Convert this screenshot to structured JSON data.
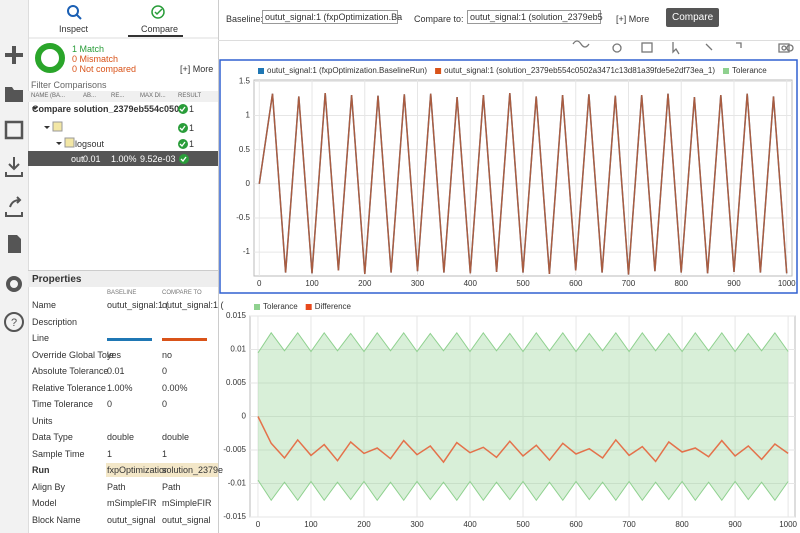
{
  "toolbar": {
    "baseline_label": "Baseline:",
    "baseline_select": "outut_signal:1 (fxpOptimization.Ba",
    "compare_label": "Compare to:",
    "compare_select": "outut_signal:1 (solution_2379eb5",
    "more": "[+] More",
    "compare_button": "Compare"
  },
  "left_panel": {
    "tabs": [
      "Inspect",
      "Compare"
    ],
    "summary": {
      "match": "1 Match",
      "mismatch": "0 Mismatch",
      "not_compared": "0 Not compared",
      "more": "[+] More"
    },
    "filter": "Filter Comparisons",
    "table": {
      "columns": [
        "NAME (BA...",
        "AB...",
        "RE...",
        "MAX DI...",
        "RESULT"
      ],
      "rows": [
        {
          "name": "Compare solution_2379eb554c0502",
          "result": "1"
        },
        {
          "result": "1"
        },
        {
          "name": "logsout",
          "result": "1"
        },
        {
          "name": "out",
          "abs": "0.01",
          "rel": "1.00%",
          "max": "9.52e-03"
        }
      ]
    },
    "properties": {
      "title": "Properties",
      "columns": [
        "BASELINE",
        "COMPARE TO"
      ],
      "baseline_color": "#1f77b4",
      "compare_color": "#d95319",
      "rows": [
        {
          "label": "Name",
          "baseline": "outut_signal:1 (",
          "compare": "outut_signal:1 ("
        },
        {
          "label": "Description"
        },
        {
          "label": "Line"
        },
        {
          "label": "Override Global Tole",
          "baseline": "yes",
          "compare": "no"
        },
        {
          "label": "Absolute Tolerance",
          "baseline": "0.01",
          "compare": "0"
        },
        {
          "label": "Relative Tolerance",
          "baseline": "1.00%",
          "compare": "0.00%"
        },
        {
          "label": "Time Tolerance",
          "baseline": "0",
          "compare": "0"
        },
        {
          "label": "Units"
        },
        {
          "label": "Data Type",
          "baseline": "double",
          "compare": "double"
        },
        {
          "label": "Sample Time",
          "baseline": "1",
          "compare": "1"
        },
        {
          "label": "Run",
          "baseline": "fxpOptimizatior",
          "compare": "solution_2379e"
        },
        {
          "label": "Align By",
          "baseline": "Path",
          "compare": "Path"
        },
        {
          "label": "Model",
          "baseline": "mSimpleFIR",
          "compare": "mSimpleFIR"
        },
        {
          "label": "Block Name",
          "baseline": "outut_signal",
          "compare": "outut_signal"
        }
      ]
    }
  },
  "chart_data": [
    {
      "type": "line",
      "x": [
        0,
        25,
        50,
        75,
        100,
        125,
        150,
        175,
        200,
        225,
        250,
        275,
        300,
        325,
        350,
        375,
        400,
        425,
        450,
        475,
        500,
        525,
        550,
        575,
        600,
        625,
        650,
        675,
        700,
        725,
        750,
        775,
        800,
        825,
        850,
        875,
        900,
        925,
        950,
        975,
        1000
      ],
      "series": [
        {
          "name": "outut_signal:1 (fxpOptimization.BaselineRun)",
          "color": "#1f77b4",
          "values": [
            0,
            1.32,
            -1.3,
            1.28,
            -1.31,
            1.33,
            -1.27,
            1.3,
            -1.32,
            1.29,
            -1.3,
            1.31,
            -1.28,
            1.32,
            -1.3,
            1.27,
            -1.31,
            1.3,
            -1.29,
            1.33,
            -1.3,
            1.28,
            -1.32,
            1.3,
            -1.27,
            1.31,
            -1.3,
            1.29,
            -1.33,
            1.3,
            -1.28,
            1.32,
            -1.3,
            1.27,
            -1.31,
            1.3,
            -1.29,
            1.32,
            -1.3,
            1.28,
            -1.31
          ]
        },
        {
          "name": "outut_signal:1 (solution_2379eb554c0502a3471c13d81a39fde5e2df73ea_1)",
          "color": "#d95319",
          "values": [
            0,
            1.32,
            -1.3,
            1.28,
            -1.31,
            1.33,
            -1.27,
            1.3,
            -1.32,
            1.29,
            -1.3,
            1.31,
            -1.28,
            1.32,
            -1.3,
            1.27,
            -1.31,
            1.3,
            -1.29,
            1.33,
            -1.3,
            1.28,
            -1.32,
            1.3,
            -1.27,
            1.31,
            -1.3,
            1.29,
            -1.33,
            1.3,
            -1.28,
            1.32,
            -1.3,
            1.27,
            -1.31,
            1.3,
            -1.29,
            1.32,
            -1.3,
            1.28,
            -1.31
          ]
        },
        {
          "name": "Tolerance",
          "color": "#8fd18f"
        }
      ],
      "xlim": [
        -10,
        1010
      ],
      "ylim": [
        -1.35,
        1.52
      ],
      "xticks": [
        0,
        100,
        200,
        300,
        400,
        500,
        600,
        700,
        800,
        900,
        1000
      ],
      "yticks": [
        -1,
        -0.5,
        0,
        0.5,
        1,
        1.5
      ],
      "grid": true
    },
    {
      "type": "band-line",
      "x": [
        0,
        25,
        50,
        75,
        100,
        125,
        150,
        175,
        200,
        225,
        250,
        275,
        300,
        325,
        350,
        375,
        400,
        425,
        450,
        475,
        500,
        525,
        550,
        575,
        600,
        625,
        650,
        675,
        700,
        725,
        750,
        775,
        800,
        825,
        850,
        875,
        900,
        925,
        950,
        975,
        1000
      ],
      "series": [
        {
          "name": "Tolerance",
          "color": "#8fd18f",
          "kind": "band",
          "values": [
            0.0095,
            0.0125,
            0.0098,
            0.0125,
            0.0097,
            0.0125,
            0.0098,
            0.0124,
            0.0097,
            0.0125,
            0.0098,
            0.0125,
            0.0097,
            0.0124,
            0.0098,
            0.0125,
            0.0097,
            0.0125,
            0.0098,
            0.0124,
            0.0097,
            0.0125,
            0.0098,
            0.0125,
            0.0097,
            0.0124,
            0.0098,
            0.0125,
            0.0097,
            0.0125,
            0.0098,
            0.0124,
            0.0097,
            0.0125,
            0.0098,
            0.0125,
            0.0097,
            0.0124,
            0.0098,
            0.0125,
            0.0097
          ]
        },
        {
          "name": "Difference",
          "color": "#e8481c",
          "kind": "line",
          "values": [
            0,
            -0.004,
            -0.0062,
            -0.0035,
            -0.0058,
            -0.0042,
            -0.0066,
            -0.0038,
            -0.0055,
            -0.0047,
            -0.0063,
            -0.0036,
            -0.0057,
            -0.0044,
            -0.0068,
            -0.0039,
            -0.0054,
            -0.0046,
            -0.0061,
            -0.0037,
            -0.0059,
            -0.0043,
            -0.0065,
            -0.004,
            -0.0056,
            -0.0048,
            -0.0062,
            -0.0035,
            -0.0058,
            -0.0045,
            -0.0067,
            -0.0038,
            -0.0053,
            -0.0047,
            -0.006,
            -0.0036,
            -0.0059,
            -0.0044,
            -0.0064,
            -0.0041,
            -0.0055
          ]
        }
      ],
      "xlim": [
        -15,
        1013
      ],
      "ylim": [
        -0.015,
        0.015
      ],
      "xticks": [
        0,
        100,
        200,
        300,
        400,
        500,
        600,
        700,
        800,
        900,
        1000
      ],
      "yticks": [
        -0.015,
        -0.01,
        -0.005,
        0,
        0.005,
        0.01,
        0.015
      ],
      "grid": true
    }
  ]
}
